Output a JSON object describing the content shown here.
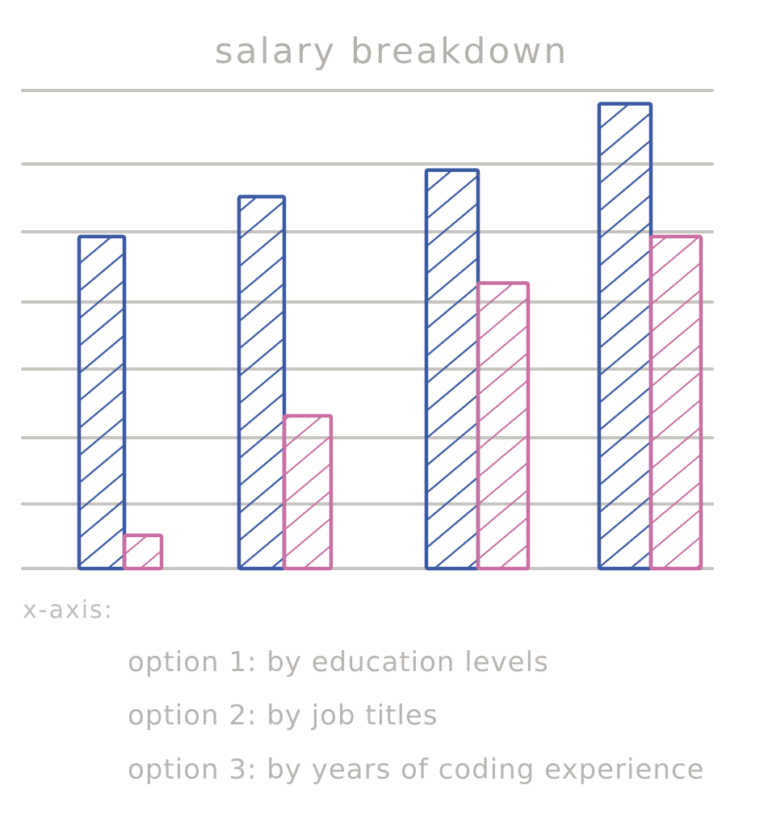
{
  "chart_data": {
    "type": "bar",
    "title": "salary breakdown",
    "categories": [
      "",
      "",
      "",
      ""
    ],
    "series": [
      {
        "values": [
          5.0,
          5.6,
          6.0,
          7.0
        ]
      },
      {
        "values": [
          0.5,
          2.3,
          4.3,
          5.0
        ]
      }
    ],
    "ylim": [
      0,
      7.2
    ],
    "grid": true,
    "gridlines": 8,
    "colors": [
      "#3b5aa3",
      "#c96fa3"
    ],
    "gridline_color": "#c8c4c0",
    "text_color": "#b5b1ad"
  },
  "notes": {
    "heading": "x-axis:",
    "lines": [
      "option 1:  by education levels",
      "option 2:  by job titles",
      "option 3:  by years of coding experience"
    ]
  }
}
